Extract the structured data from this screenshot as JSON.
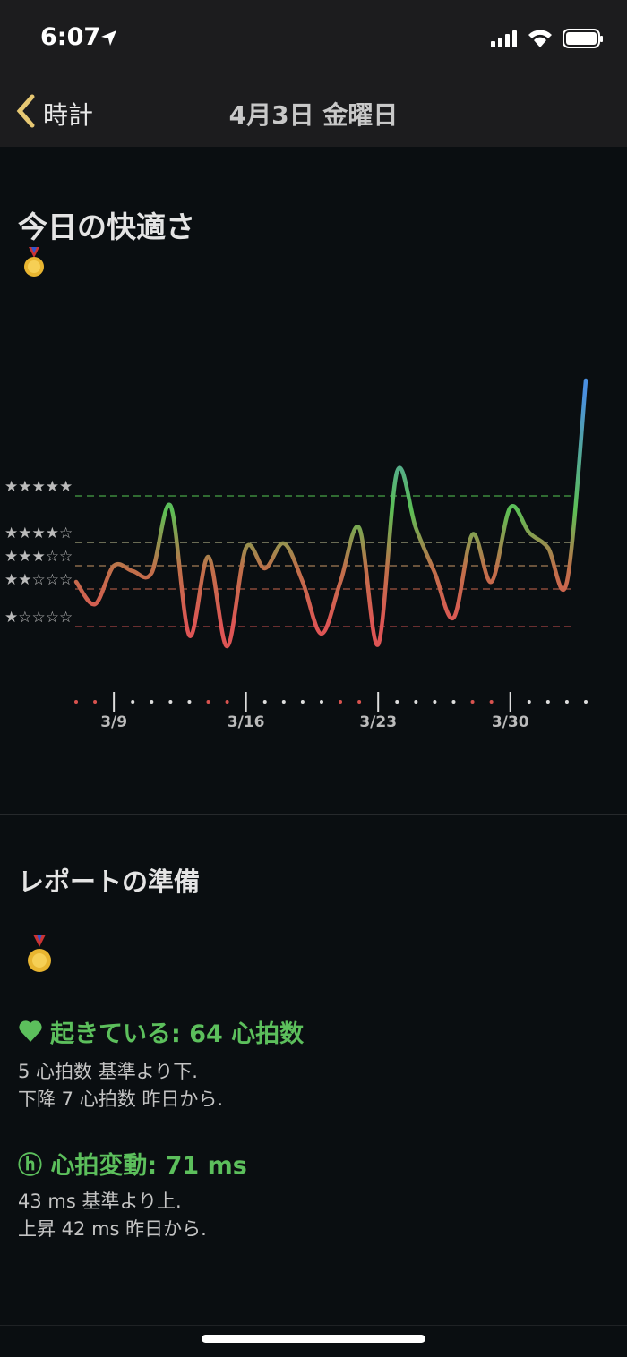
{
  "status_bar": {
    "time": "6:07"
  },
  "nav": {
    "back": "時計",
    "title": "4月3日 金曜日"
  },
  "comfort": {
    "title": "今日の快適さ"
  },
  "chart_data": {
    "type": "line",
    "categories": [
      null,
      null,
      "3/9",
      null,
      null,
      null,
      null,
      null,
      null,
      "3/16",
      null,
      null,
      null,
      null,
      null,
      null,
      "3/23",
      null,
      null,
      null,
      null,
      null,
      null,
      "3/30",
      null,
      null,
      null,
      null
    ],
    "values": [
      45,
      32.5,
      54,
      51,
      50,
      87.5,
      15,
      59,
      9,
      64,
      52.5,
      66.5,
      45,
      16,
      45,
      75,
      10,
      106.5,
      75,
      50,
      25,
      71.5,
      45,
      86.5,
      72.5,
      64,
      45,
      157.5
    ],
    "ylim": [
      0,
      170
    ],
    "yticks": [
      {
        "value": 93,
        "label": "★★★★★"
      },
      {
        "value": 67,
        "label": "★★★★☆"
      },
      {
        "value": 54,
        "label": "★★★☆☆"
      },
      {
        "value": 41,
        "label": "★★☆☆☆"
      },
      {
        "value": 20,
        "label": "★☆☆☆☆"
      }
    ],
    "grid": true,
    "grid_colors": [
      "#3d8a3d",
      "#8a8a6a",
      "#8a6a4a",
      "#8a4a3a",
      "#8a3a3a"
    ],
    "line_colors": [
      "#de5555",
      "#c0704a",
      "#5cbf55",
      "#4a8fe0"
    ]
  },
  "report": {
    "title": "レポートの準備",
    "items": [
      {
        "heading": "起きている: 64 心拍数",
        "lines": [
          "5 心拍数 基準より下.",
          "下降 7 心拍数 昨日から."
        ]
      },
      {
        "heading": "ⓗ 心拍変動: 71 ms",
        "lines": [
          "43 ms 基準より上.",
          "上昇 42 ms 昨日から."
        ]
      }
    ]
  }
}
